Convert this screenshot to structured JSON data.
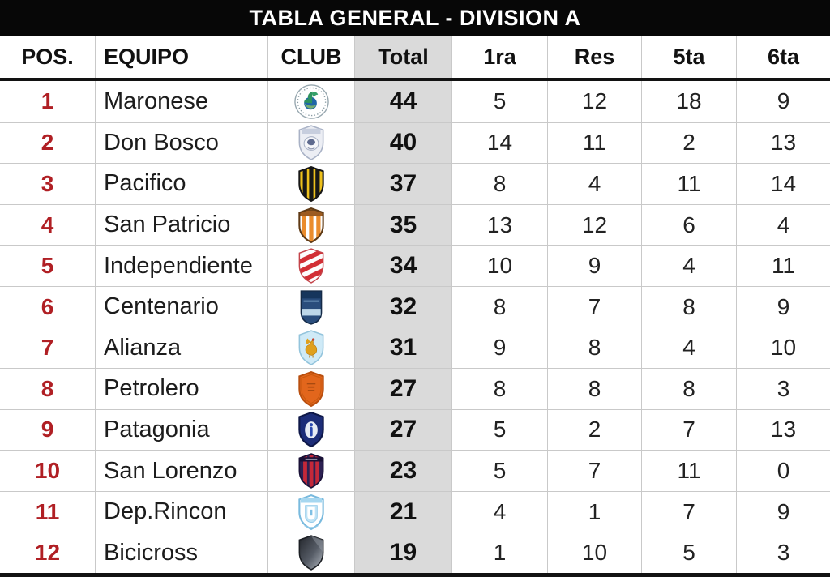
{
  "title_bar": {
    "title": "TABLA GENERAL - DIVISION A"
  },
  "colors": {
    "title_bar_bg": "#070707",
    "heavy_line": "#121212",
    "grid_line": "#c9c9c9",
    "total_column_bg": "#dadada",
    "position_red": "#b01f24"
  },
  "chart_data": {
    "type": "table",
    "title": "TABLA GENERAL - DIVISION A",
    "columns": [
      "POS.",
      "EQUIPO",
      "CLUB",
      "Total",
      "1ra",
      "Res",
      "5ta",
      "6ta"
    ],
    "rows": [
      {
        "pos": "1",
        "team": "Maronese",
        "crest": "maronese-crest",
        "total": "44",
        "r1": "5",
        "res": "12",
        "r5": "18",
        "r6": "9"
      },
      {
        "pos": "2",
        "team": "Don Bosco",
        "crest": "don-bosco-crest",
        "total": "40",
        "r1": "14",
        "res": "11",
        "r5": "2",
        "r6": "13"
      },
      {
        "pos": "3",
        "team": "Pacifico",
        "crest": "pacifico-crest",
        "total": "37",
        "r1": "8",
        "res": "4",
        "r5": "11",
        "r6": "14"
      },
      {
        "pos": "4",
        "team": "San Patricio",
        "crest": "san-patricio-crest",
        "total": "35",
        "r1": "13",
        "res": "12",
        "r5": "6",
        "r6": "4"
      },
      {
        "pos": "5",
        "team": "Independiente",
        "crest": "independiente-crest",
        "total": "34",
        "r1": "10",
        "res": "9",
        "r5": "4",
        "r6": "11"
      },
      {
        "pos": "6",
        "team": "Centenario",
        "crest": "centenario-crest",
        "total": "32",
        "r1": "8",
        "res": "7",
        "r5": "8",
        "r6": "9"
      },
      {
        "pos": "7",
        "team": "Alianza",
        "crest": "alianza-crest",
        "total": "31",
        "r1": "9",
        "res": "8",
        "r5": "4",
        "r6": "10"
      },
      {
        "pos": "8",
        "team": "Petrolero",
        "crest": "petrolero-crest",
        "total": "27",
        "r1": "8",
        "res": "8",
        "r5": "8",
        "r6": "3"
      },
      {
        "pos": "9",
        "team": "Patagonia",
        "crest": "patagonia-crest",
        "total": "27",
        "r1": "5",
        "res": "2",
        "r5": "7",
        "r6": "13"
      },
      {
        "pos": "10",
        "team": "San Lorenzo",
        "crest": "san-lorenzo-crest",
        "total": "23",
        "r1": "5",
        "res": "7",
        "r5": "11",
        "r6": "0"
      },
      {
        "pos": "11",
        "team": "Dep.Rincon",
        "crest": "dep-rincon-crest",
        "total": "21",
        "r1": "4",
        "res": "1",
        "r5": "7",
        "r6": "9"
      },
      {
        "pos": "12",
        "team": "Bicicross",
        "crest": "bicicross-crest",
        "total": "19",
        "r1": "1",
        "res": "10",
        "r5": "5",
        "r6": "3"
      }
    ]
  }
}
